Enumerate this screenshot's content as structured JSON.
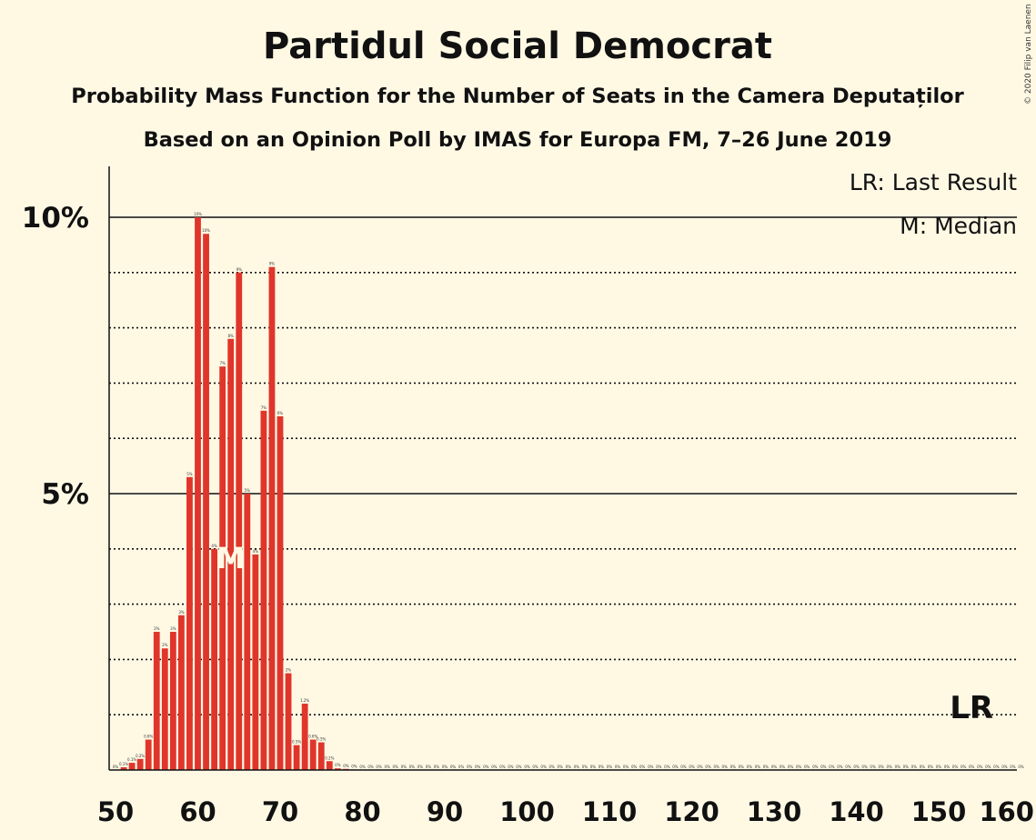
{
  "chart_data": {
    "type": "bar",
    "title": "Partidul Social Democrat",
    "subtitle": "Probability Mass Function for the Number of Seats in the Camera Deputaților",
    "subtitle2": "Based on an Opinion Poll by IMAS for Europa FM, 7–26 June 2019",
    "copyright": "© 2020 Filip van Laenen",
    "legend": [
      "LR: Last Result",
      "M: Median"
    ],
    "legend_placement": "top-right",
    "x_range": [
      50,
      160
    ],
    "x_ticks": [
      50,
      60,
      70,
      80,
      90,
      100,
      110,
      120,
      130,
      140,
      150,
      160
    ],
    "ylim": [
      0,
      11
    ],
    "y_ticks": [
      {
        "value": 5,
        "label": "5%"
      },
      {
        "value": 10,
        "label": "10%"
      }
    ],
    "y_gridlines_dotted": [
      1,
      2,
      3,
      4,
      6,
      7,
      8,
      9
    ],
    "bar_color": "#E0352B",
    "median_seats": 64,
    "median_label": "M",
    "last_result_seats": 154,
    "last_result_label": "LR",
    "x": [
      50,
      51,
      52,
      53,
      54,
      55,
      56,
      57,
      58,
      59,
      60,
      61,
      62,
      63,
      64,
      65,
      66,
      67,
      68,
      69,
      70,
      71,
      72,
      73,
      74,
      75,
      76,
      77,
      78,
      79,
      80
    ],
    "values": [
      0.0,
      0.05,
      0.13,
      0.2,
      0.55,
      2.5,
      2.2,
      2.5,
      2.8,
      5.3,
      10.0,
      9.7,
      4.0,
      7.3,
      7.8,
      9.0,
      5.0,
      3.9,
      6.5,
      9.1,
      6.4,
      1.75,
      0.45,
      1.2,
      0.55,
      0.5,
      0.16,
      0.03,
      0.02,
      0.01,
      0.0
    ],
    "value_labels": [
      "0%",
      "0.1%",
      "0.1%",
      "0.2%",
      "0.6%",
      "2%",
      "2%",
      "3%",
      "3%",
      "5%",
      "10%",
      "10%",
      "4%",
      "7%",
      "8%",
      "9%",
      "5%",
      "4%",
      "7%",
      "9%",
      "6%",
      "2%",
      "0.5%",
      "1.2%",
      "0.6%",
      "0.5%",
      "0.2%",
      "0%",
      "0%",
      "0%",
      "0%"
    ],
    "zero_label": "0%"
  }
}
